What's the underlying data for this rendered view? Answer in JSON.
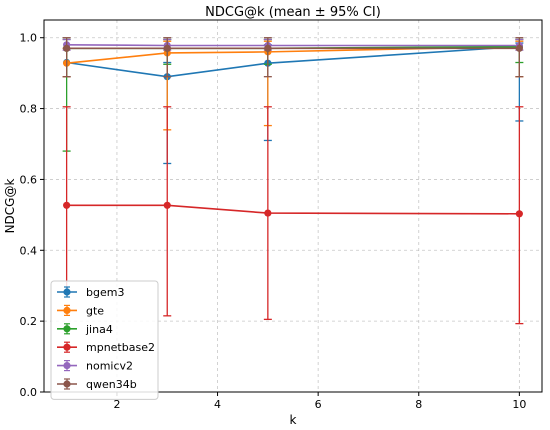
{
  "chart_data": {
    "type": "line",
    "title": "NDCG@k (mean ± 95% CI)",
    "xlabel": "k",
    "ylabel": "NDCG@k",
    "xlim": [
      0.55,
      10.45
    ],
    "ylim": [
      0.0,
      1.05
    ],
    "xticks": [
      2,
      4,
      6,
      8,
      10
    ],
    "yticks": [
      0.0,
      0.2,
      0.4,
      0.6,
      0.8,
      1.0
    ],
    "grid": true,
    "legend_position": "bottom-left",
    "x": [
      1,
      3,
      5,
      10
    ],
    "series": [
      {
        "name": "bgem3",
        "color": "#1f77b4",
        "values": [
          0.93,
          0.89,
          0.928,
          0.975
        ],
        "ci_low": [
          0.89,
          0.645,
          0.71,
          0.765
        ],
        "ci_high": [
          0.97,
          0.93,
          0.98,
          0.985
        ]
      },
      {
        "name": "gte",
        "color": "#ff7f0e",
        "values": [
          0.928,
          0.957,
          0.96,
          0.975
        ],
        "ci_low": [
          0.89,
          0.74,
          0.752,
          0.89
        ],
        "ci_high": [
          0.97,
          0.99,
          0.99,
          0.99
        ]
      },
      {
        "name": "jina4",
        "color": "#2ca02c",
        "values": [
          0.97,
          0.97,
          0.97,
          0.975
        ],
        "ci_low": [
          0.68,
          0.925,
          0.925,
          0.93
        ],
        "ci_high": [
          0.995,
          0.995,
          0.995,
          0.995
        ]
      },
      {
        "name": "mpnetbase2",
        "color": "#d62728",
        "values": [
          0.527,
          0.527,
          0.505,
          0.503
        ],
        "ci_low": [
          0.282,
          0.215,
          0.205,
          0.193
        ],
        "ci_high": [
          0.805,
          0.805,
          0.805,
          0.805
        ]
      },
      {
        "name": "nomicv2",
        "color": "#9467bd",
        "values": [
          0.98,
          0.978,
          0.978,
          0.978
        ],
        "ci_low": [
          0.965,
          0.965,
          0.965,
          0.965
        ],
        "ci_high": [
          0.995,
          0.995,
          0.995,
          0.995
        ]
      },
      {
        "name": "qwen34b",
        "color": "#8c564b",
        "values": [
          0.97,
          0.97,
          0.97,
          0.97
        ],
        "ci_low": [
          0.89,
          0.89,
          0.89,
          0.89
        ],
        "ci_high": [
          1.0,
          1.0,
          1.0,
          1.0
        ]
      }
    ]
  }
}
